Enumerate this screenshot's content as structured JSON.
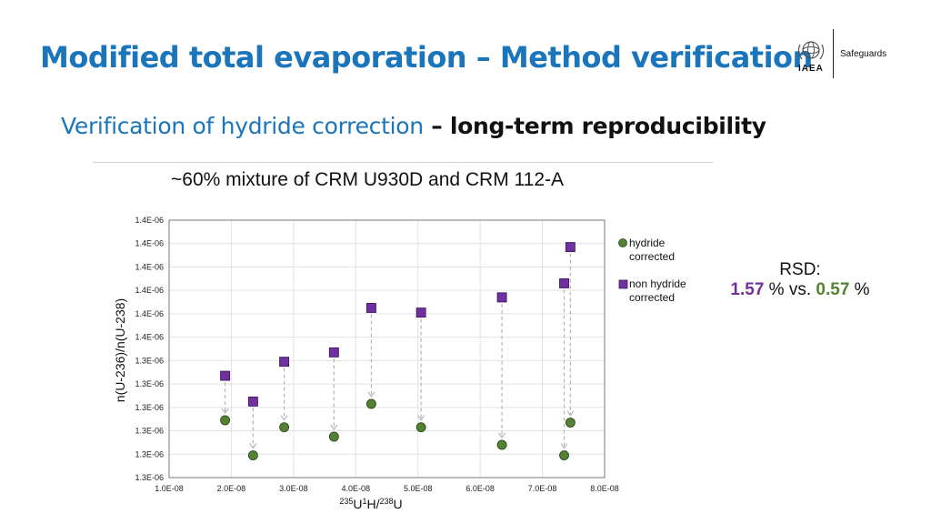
{
  "header": {
    "title": "Modified total evaporation – Method verification",
    "subtitle_a": "Verification of hydride correction",
    "subtitle_b": " – long-term reproducibility",
    "logo_text": "IAEA",
    "safeguards": "Safeguards"
  },
  "rsd": {
    "label": "RSD:",
    "value_a": "1.57",
    "mid": " % vs. ",
    "value_b": "0.57",
    "end": " %"
  },
  "colors": {
    "title": "#1b75bb",
    "corrected": "#548235",
    "non_corrected": "#7030a0"
  },
  "chart_data": {
    "type": "scatter",
    "title": "~60% mixture of CRM U930D and CRM 112-A",
    "xlabel": "235U1H/238U",
    "ylabel": "n(U-236)/n(U-238)",
    "xlim": [
      1e-08,
      8e-08
    ],
    "ylim_plot": [
      0,
      11
    ],
    "x_ticks": [
      "1.0E-08",
      "2.0E-08",
      "3.0E-08",
      "4.0E-08",
      "5.0E-08",
      "6.0E-08",
      "7.0E-08",
      "8.0E-08"
    ],
    "y_ticks": [
      "1.3E-06",
      "1.3E-06",
      "1.3E-06",
      "1.3E-06",
      "1.3E-06",
      "1.3E-06",
      "1.4E-06",
      "1.4E-06",
      "1.4E-06",
      "1.4E-06",
      "1.4E-06",
      "1.4E-06"
    ],
    "grid": true,
    "legend_position": "right",
    "series": [
      {
        "name": "hydride corrected",
        "color": "#548235",
        "marker": "circle",
        "x": [
          1.9e-08,
          2.35e-08,
          2.85e-08,
          3.65e-08,
          4.25e-08,
          5.05e-08,
          6.35e-08,
          7.35e-08,
          7.45e-08
        ],
        "y": [
          2.45,
          0.95,
          2.15,
          1.75,
          3.15,
          2.15,
          1.4,
          0.95,
          2.35
        ]
      },
      {
        "name": "non hydride corrected",
        "color": "#7030a0",
        "marker": "square",
        "x": [
          1.9e-08,
          2.35e-08,
          2.85e-08,
          3.65e-08,
          4.25e-08,
          5.05e-08,
          6.35e-08,
          7.35e-08,
          7.45e-08
        ],
        "y": [
          4.35,
          3.25,
          4.95,
          5.35,
          7.25,
          7.05,
          7.7,
          8.3,
          9.85
        ]
      }
    ]
  }
}
